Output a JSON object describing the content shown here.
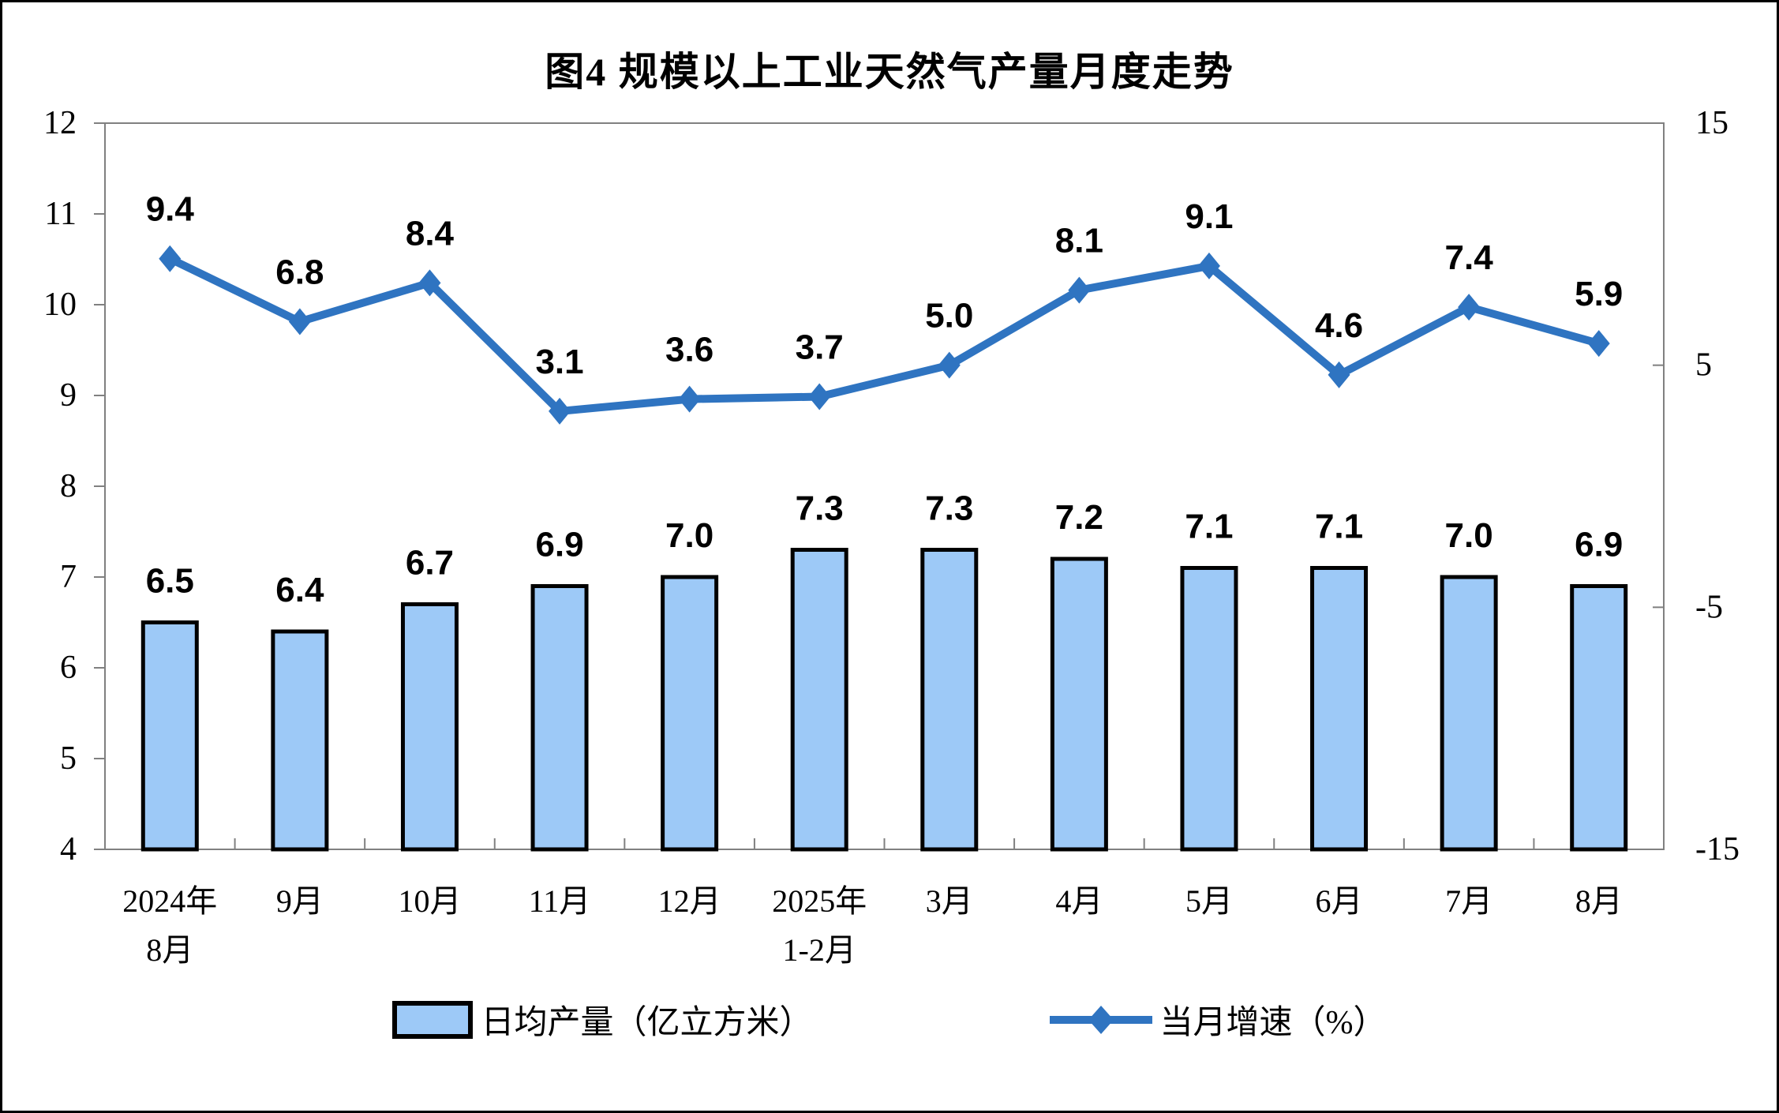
{
  "chart_data": {
    "type": "bar+line",
    "title": "图4 规模以上工业天然气产量月度走势",
    "categories": [
      "2024年\n8月",
      "9月",
      "10月",
      "11月",
      "12月",
      "2025年\n1-2月",
      "3月",
      "4月",
      "5月",
      "6月",
      "7月",
      "8月"
    ],
    "series": [
      {
        "name": "日均产量（亿立方米）",
        "type": "bar",
        "axis": "left",
        "values": [
          6.5,
          6.4,
          6.7,
          6.9,
          7.0,
          7.3,
          7.3,
          7.2,
          7.1,
          7.1,
          7.0,
          6.9
        ]
      },
      {
        "name": "当月增速（%）",
        "type": "line",
        "axis": "right",
        "values": [
          9.4,
          6.8,
          8.4,
          3.1,
          3.6,
          3.7,
          5.0,
          8.1,
          9.1,
          4.6,
          7.4,
          5.9
        ]
      }
    ],
    "axes": {
      "left": {
        "min": 4,
        "max": 12,
        "step": 1,
        "labels": [
          "4",
          "5",
          "6",
          "7",
          "8",
          "9",
          "10",
          "11",
          "12"
        ]
      },
      "right": {
        "min": -15,
        "max": 15,
        "tick_values": [
          15,
          5,
          -5,
          -15
        ],
        "labels": [
          "15",
          "5",
          "-5",
          "-15"
        ]
      }
    },
    "grid": false,
    "legend_position": "bottom",
    "data_labels": true,
    "colors": {
      "bar_fill": "#9DC9F7",
      "bar_border": "#000000",
      "line": "#2F74C1",
      "axis_line": "#808080",
      "text": "#000000"
    }
  }
}
